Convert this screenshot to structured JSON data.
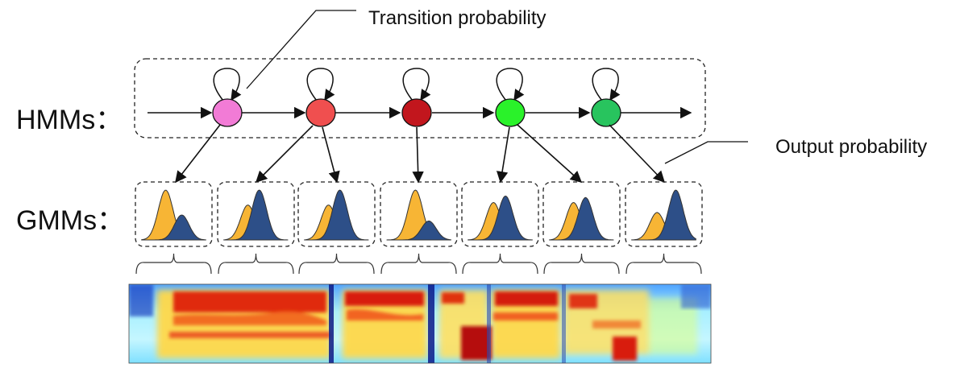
{
  "labels": {
    "transition": "Transition probability",
    "output": "Output probability",
    "hmms": "HMMs：",
    "gmms": "GMMs："
  },
  "hmm_states": [
    {
      "color": "#f27bd6"
    },
    {
      "color": "#f04f4f"
    },
    {
      "color": "#c2161d"
    },
    {
      "color": "#2af22a"
    },
    {
      "color": "#28c45e"
    }
  ],
  "gmm_boxes": [
    {
      "yellow_peak": 1.0,
      "blue_peak": 0.5,
      "yellow_mu": 0.38,
      "blue_mu": 0.62
    },
    {
      "yellow_peak": 0.7,
      "blue_peak": 1.0,
      "yellow_mu": 0.38,
      "blue_mu": 0.55
    },
    {
      "yellow_peak": 0.7,
      "blue_peak": 1.0,
      "yellow_mu": 0.38,
      "blue_mu": 0.55
    },
    {
      "yellow_peak": 1.0,
      "blue_peak": 0.38,
      "yellow_mu": 0.45,
      "blue_mu": 0.65
    },
    {
      "yellow_peak": 0.75,
      "blue_peak": 0.88,
      "yellow_mu": 0.4,
      "blue_mu": 0.58
    },
    {
      "yellow_peak": 0.75,
      "blue_peak": 0.85,
      "yellow_mu": 0.38,
      "blue_mu": 0.56
    },
    {
      "yellow_peak": 0.55,
      "blue_peak": 1.0,
      "yellow_mu": 0.4,
      "blue_mu": 0.68
    }
  ],
  "colors": {
    "gmm_yellow": "#f7b535",
    "gmm_blue": "#2d4f88",
    "line": "#111111"
  }
}
